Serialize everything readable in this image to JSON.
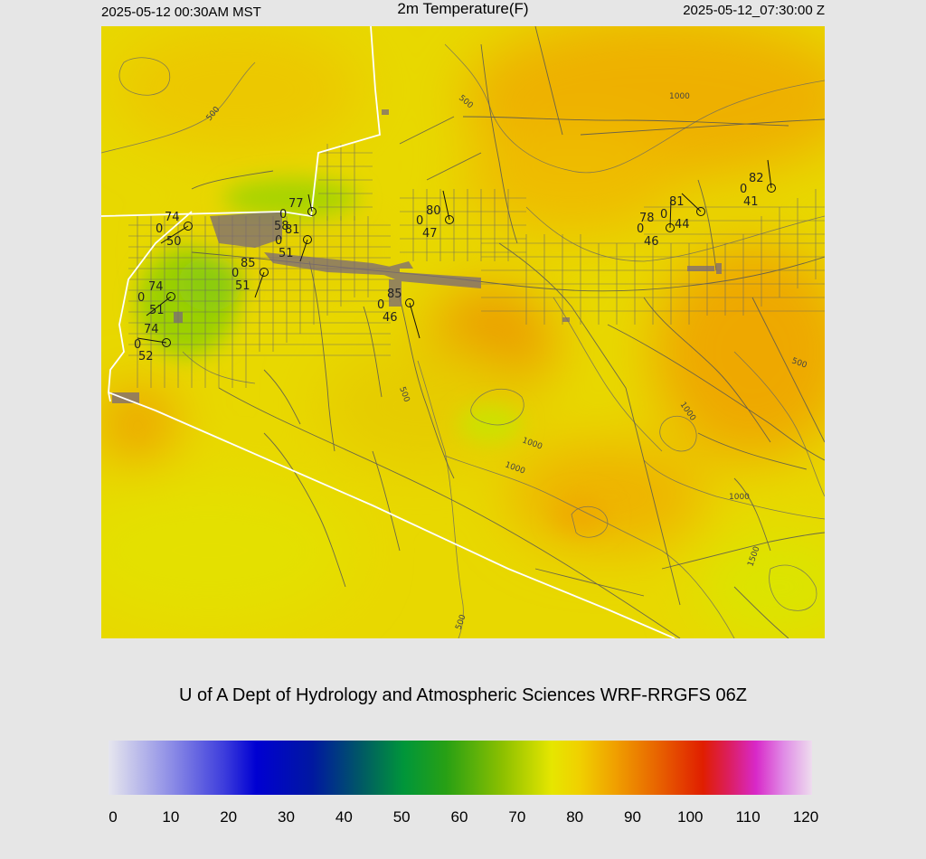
{
  "header": {
    "local_time": "2025-05-12 00:30AM MST",
    "title": "2m Temperature(F)",
    "utc_time": "2025-05-12_07:30:00 Z"
  },
  "credit": "U of A Dept of Hydrology and Atmospheric Sciences WRF-RRGFS 06Z",
  "colorbar": {
    "ticks": [
      "0",
      "10",
      "20",
      "30",
      "40",
      "50",
      "60",
      "70",
      "80",
      "90",
      "100",
      "110",
      "120"
    ],
    "min": 0,
    "max": 120
  },
  "contour_labels": [
    "500",
    "500",
    "500",
    "500",
    "1000",
    "1000",
    "1000",
    "1000",
    "1000",
    "1500",
    "500"
  ],
  "stations": [
    {
      "temp": "74",
      "wind": "0",
      "dew": "50"
    },
    {
      "temp": "77",
      "wind": "0",
      "dew": "58"
    },
    {
      "temp": "81",
      "wind": "0",
      "dew": "51"
    },
    {
      "temp": "85",
      "wind": "0",
      "dew": "51"
    },
    {
      "temp": "74",
      "wind": "0",
      "dew": "51"
    },
    {
      "temp": "74",
      "wind": "0",
      "dew": "52"
    },
    {
      "temp": "85",
      "wind": "0",
      "dew": "46"
    },
    {
      "temp": "80",
      "wind": "0",
      "dew": "47"
    },
    {
      "temp": "78",
      "wind": "0",
      "dew": "46"
    },
    {
      "temp": "81",
      "wind": "0",
      "dew": "44"
    },
    {
      "temp": "82",
      "wind": "0",
      "dew": "41"
    }
  ],
  "colors": {
    "background": "#e6e6e6",
    "warm_orange": "#eeb000",
    "yellow": "#e6e600",
    "green_cool": "#9cd000",
    "boundary": "#ffffff",
    "roads": "#555555"
  }
}
